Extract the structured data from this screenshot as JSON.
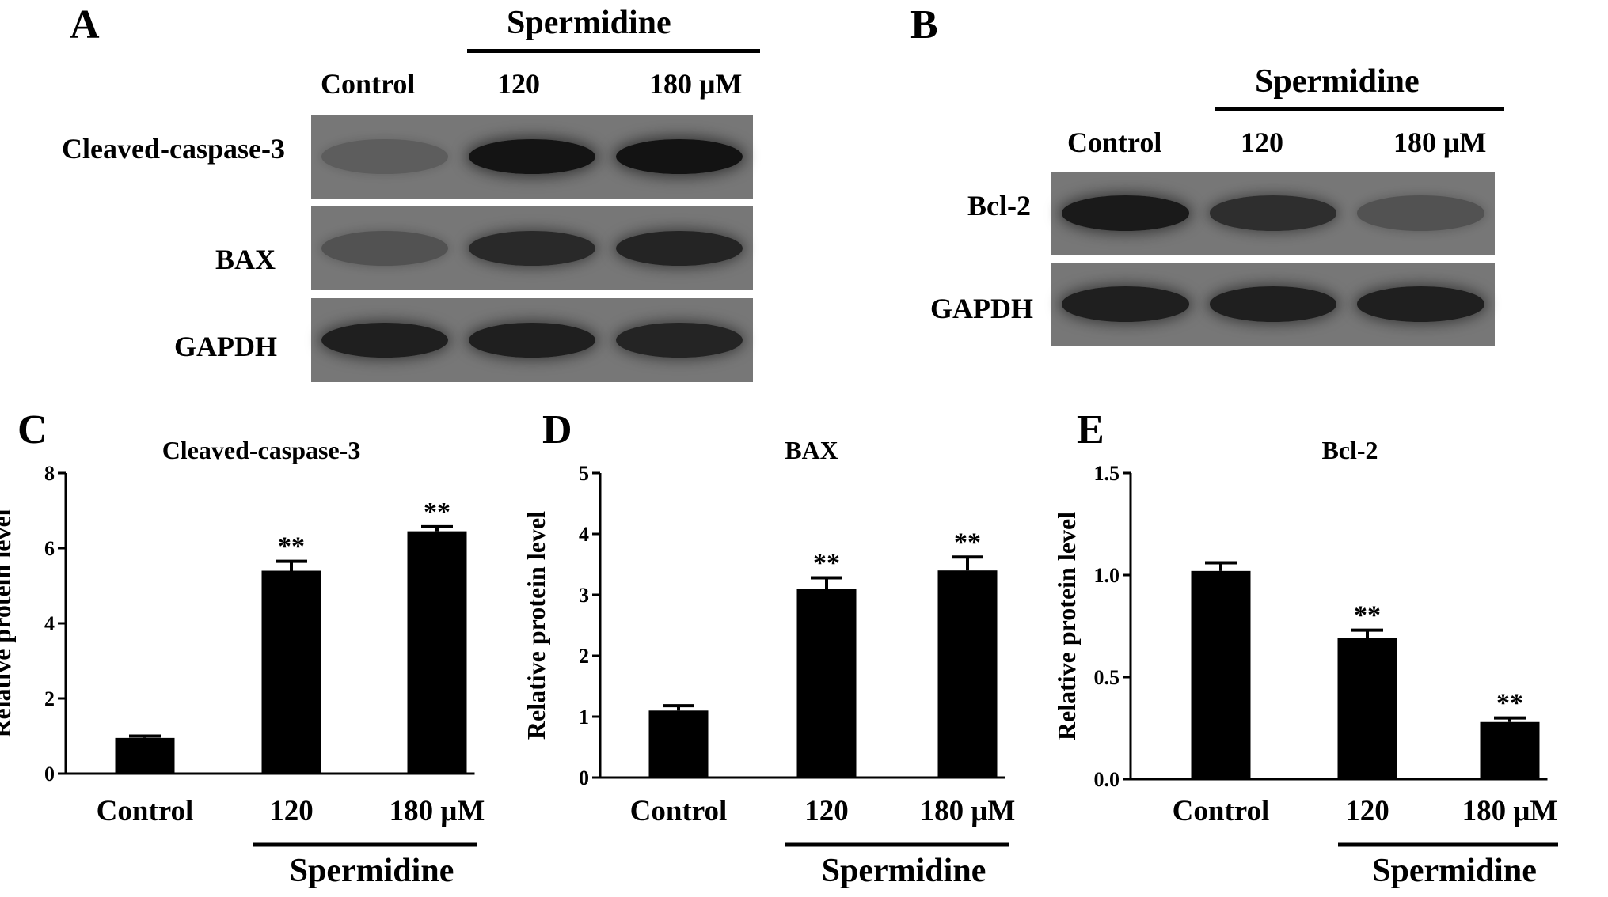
{
  "panels": {
    "A": {
      "letter": "A",
      "group_label": "Spermidine",
      "lanes": [
        "Control",
        "120",
        "180 μM"
      ],
      "rows": [
        {
          "label": "Cleaved-caspase-3",
          "intensity": [
            0.25,
            0.95,
            0.97
          ]
        },
        {
          "label": "BAX",
          "intensity": [
            0.35,
            0.75,
            0.8
          ]
        },
        {
          "label": "GAPDH",
          "intensity": [
            0.85,
            0.85,
            0.8
          ]
        }
      ]
    },
    "B": {
      "letter": "B",
      "group_label": "Spermidine",
      "lanes": [
        "Control",
        "120",
        "180 μM"
      ],
      "rows": [
        {
          "label": "Bcl-2",
          "intensity": [
            0.9,
            0.7,
            0.35
          ]
        },
        {
          "label": "GAPDH",
          "intensity": [
            0.85,
            0.85,
            0.85
          ]
        }
      ]
    }
  },
  "chart_data": [
    {
      "letter": "C",
      "type": "bar",
      "title": "Cleaved-caspase-3",
      "ylabel": "Relative protein level",
      "categories": [
        "Control",
        "120",
        "180 μM"
      ],
      "values": [
        0.95,
        5.4,
        6.45
      ],
      "errors": [
        0.05,
        0.25,
        0.12
      ],
      "significance": [
        "",
        "**",
        "**"
      ],
      "ylim": [
        0,
        8
      ],
      "yticks": [
        "0",
        "2",
        "4",
        "6",
        "8"
      ],
      "group_label": "Spermidine"
    },
    {
      "letter": "D",
      "type": "bar",
      "title": "BAX",
      "ylabel": "Relative protein level",
      "categories": [
        "Control",
        "120",
        "180 μM"
      ],
      "values": [
        1.1,
        3.1,
        3.4
      ],
      "errors": [
        0.08,
        0.18,
        0.22
      ],
      "significance": [
        "",
        "**",
        "**"
      ],
      "ylim": [
        0,
        5
      ],
      "yticks": [
        "0",
        "1",
        "2",
        "3",
        "4",
        "5"
      ],
      "group_label": "Spermidine"
    },
    {
      "letter": "E",
      "type": "bar",
      "title": "Bcl-2",
      "ylabel": "Relative protein level",
      "categories": [
        "Control",
        "120",
        "180 μM"
      ],
      "values": [
        1.02,
        0.69,
        0.28
      ],
      "errors": [
        0.04,
        0.04,
        0.02
      ],
      "significance": [
        "",
        "**",
        "**"
      ],
      "ylim": [
        0,
        1.5
      ],
      "yticks": [
        "0.0",
        "0.5",
        "1.0",
        "1.5"
      ],
      "group_label": "Spermidine"
    }
  ]
}
